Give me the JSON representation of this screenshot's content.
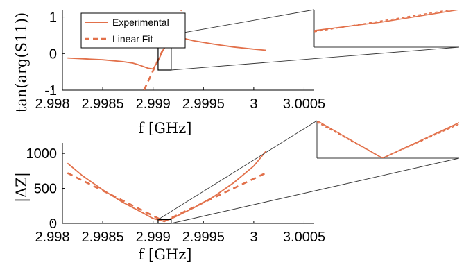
{
  "colors": {
    "series": "#e2704a",
    "axis": "#000000",
    "inset_frame": "#333333"
  },
  "chart_data": [
    {
      "type": "line",
      "xlabel": "f [GHz]",
      "ylabel": "tan(arg(S11))",
      "xlim": [
        2.9981,
        3.0006
      ],
      "ylim": [
        -1,
        1.2
      ],
      "xticks": [
        2.998,
        2.9985,
        2.999,
        2.9995,
        3,
        3.0005
      ],
      "xtick_labels": [
        "2.998",
        "2.9985",
        "2.999",
        "2.9995",
        "3",
        "3.0005"
      ],
      "yticks": [
        -1,
        0,
        1
      ],
      "ytick_labels": [
        "-1",
        "0",
        "1"
      ],
      "legend": {
        "position": "top-left",
        "entries": [
          "Experimental",
          "Linear Fit"
        ]
      },
      "series": [
        {
          "name": "Experimental",
          "style": "solid",
          "x": [
            2.99815,
            2.9983,
            2.9985,
            2.9987,
            2.9988,
            2.99885,
            2.9989,
            2.99895,
            2.999,
            2.99905,
            2.9991,
            2.99915,
            2.9992,
            2.99925,
            2.9993,
            2.9994,
            2.9996,
            2.9998,
            3.0,
            3.00012
          ],
          "y": [
            -0.12,
            -0.14,
            -0.17,
            -0.22,
            -0.26,
            -0.3,
            -0.35,
            -0.4,
            -0.42,
            -0.2,
            0.1,
            0.3,
            0.42,
            0.45,
            0.42,
            0.35,
            0.26,
            0.18,
            0.12,
            0.09
          ]
        },
        {
          "name": "Linear Fit",
          "style": "dashed",
          "x": [
            2.99891,
            2.99928
          ],
          "y": [
            -1.0,
            1.18
          ]
        }
      ],
      "zoom_box": {
        "x": [
          2.99905,
          2.99918
        ],
        "y": [
          -0.45,
          0.45
        ]
      },
      "inset": {
        "description_free": true
      }
    },
    {
      "type": "line",
      "xlabel": "f [GHz]",
      "ylabel": "|ΔZ|",
      "xlim": [
        2.9981,
        3.0006
      ],
      "ylim": [
        0,
        1150
      ],
      "xticks": [
        2.998,
        2.9985,
        2.999,
        2.9995,
        3,
        3.0005
      ],
      "xtick_labels": [
        "2.998",
        "2.9985",
        "2.999",
        "2.9995",
        "3",
        "3.0005"
      ],
      "yticks": [
        0,
        500,
        1000
      ],
      "ytick_labels": [
        "0",
        "500",
        "1000"
      ],
      "series": [
        {
          "name": "Experimental",
          "style": "solid",
          "x": [
            2.99815,
            2.9983,
            2.9985,
            2.9987,
            2.9989,
            2.999,
            2.99911,
            2.9992,
            2.9994,
            2.9996,
            2.9998,
            2.9999,
            3.0,
            3.00012
          ],
          "y": [
            860,
            680,
            480,
            300,
            150,
            70,
            30,
            80,
            220,
            380,
            580,
            700,
            820,
            1030
          ]
        },
        {
          "name": "Linear Fit",
          "style": "dashed",
          "x": [
            2.99815,
            2.99911,
            3.00012
          ],
          "y": [
            720,
            30,
            720
          ]
        }
      ],
      "zoom_box": {
        "x": [
          2.99905,
          2.99918
        ],
        "y": [
          0,
          55
        ]
      }
    }
  ],
  "legend_labels": {
    "experimental": "Experimental",
    "linear_fit": "Linear Fit"
  },
  "axis_labels": {
    "top_x": "f [GHz]",
    "bottom_x": "f [GHz]",
    "top_y": "tan(arg(S11))",
    "bottom_y": "|ΔZ|"
  }
}
